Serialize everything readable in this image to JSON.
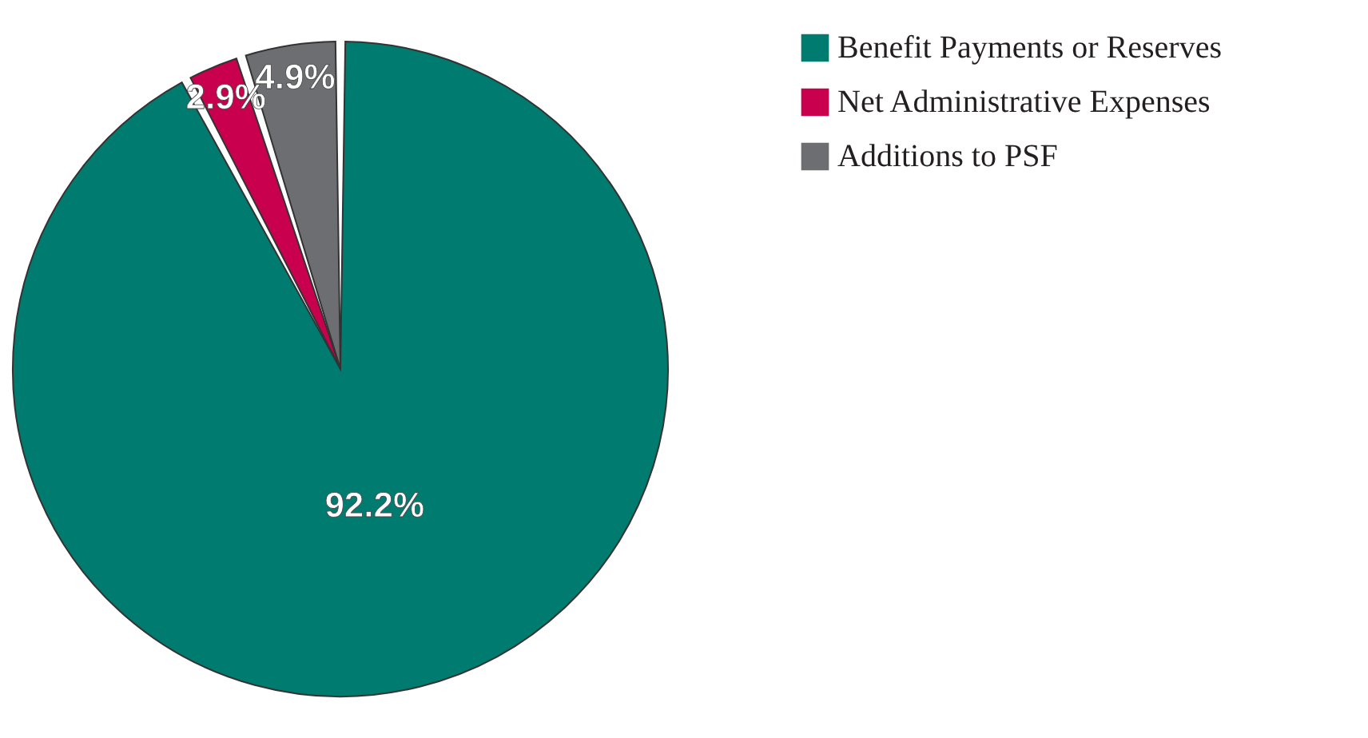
{
  "chart_data": {
    "type": "pie",
    "categories": [
      "Benefit Payments or Reserves",
      "Net Administrative Expenses",
      "Additions to PSF"
    ],
    "values": [
      92.2,
      2.9,
      4.9
    ],
    "colors": [
      "#007b70",
      "#c8004e",
      "#6d6e71"
    ],
    "value_labels": [
      "92.2%",
      "2.9%",
      "4.9%"
    ],
    "legend": "top right"
  }
}
